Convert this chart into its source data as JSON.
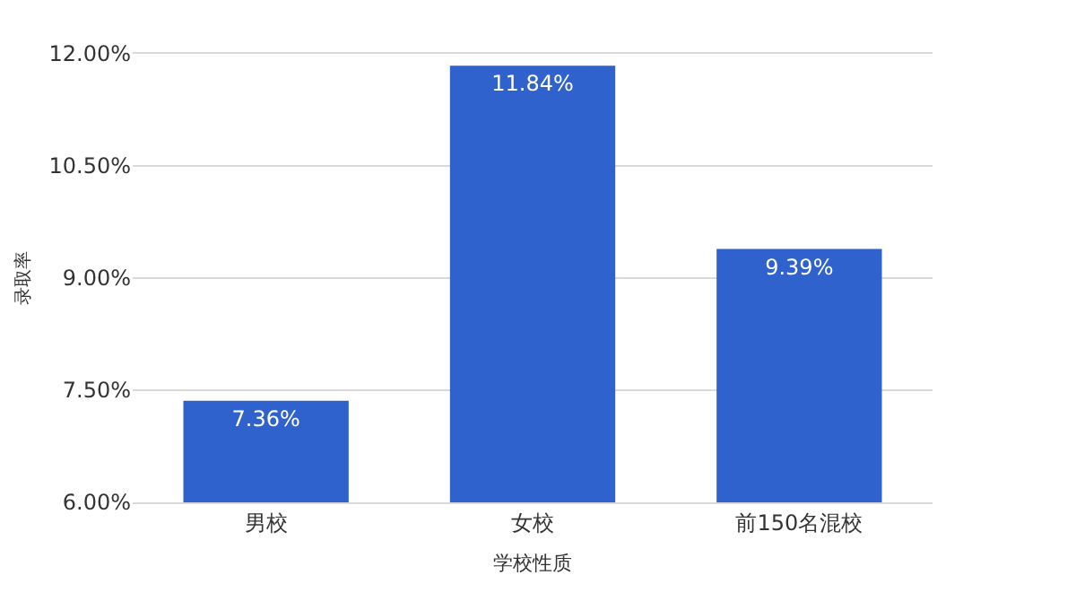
{
  "chart_data": {
    "type": "bar",
    "xlabel": "学校性质",
    "ylabel": "录取率",
    "categories": [
      "男校",
      "女校",
      "前150名混校"
    ],
    "values": [
      7.36,
      11.84,
      9.39
    ],
    "value_labels": [
      "7.36%",
      "11.84%",
      "9.39%"
    ],
    "color": "#2f62cc",
    "ylim": [
      6,
      12
    ],
    "yticks": [
      {
        "value": 6,
        "label": "6.00%"
      },
      {
        "value": 7.5,
        "label": "7.50%"
      },
      {
        "value": 9,
        "label": "9.00%"
      },
      {
        "value": 10.5,
        "label": "10.50%"
      },
      {
        "value": 12,
        "label": "12.00%"
      }
    ],
    "grid": "y"
  }
}
